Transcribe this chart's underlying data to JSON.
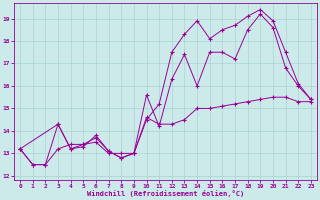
{
  "xlabel": "Windchill (Refroidissement éolien,°C)",
  "bg_color": "#cceaea",
  "line_color": "#990099",
  "grid_color": "#aad4d4",
  "xlim": [
    -0.5,
    23.5
  ],
  "ylim": [
    11.8,
    19.7
  ],
  "yticks": [
    12,
    13,
    14,
    15,
    16,
    17,
    18,
    19
  ],
  "xticks": [
    0,
    1,
    2,
    3,
    4,
    5,
    6,
    7,
    8,
    9,
    10,
    11,
    12,
    13,
    14,
    15,
    16,
    17,
    18,
    19,
    20,
    21,
    22,
    23
  ],
  "line1_x": [
    0,
    1,
    2,
    3,
    4,
    5,
    6,
    7,
    8,
    9,
    10,
    11,
    12,
    13,
    14,
    15,
    16,
    17,
    18,
    19,
    20,
    21,
    22,
    23
  ],
  "line1_y": [
    13.2,
    12.5,
    12.5,
    14.3,
    13.2,
    13.4,
    13.7,
    13.1,
    12.8,
    13.0,
    14.6,
    14.3,
    14.3,
    14.5,
    15.0,
    15.0,
    15.1,
    15.2,
    15.3,
    15.4,
    15.5,
    15.5,
    15.3,
    15.3
  ],
  "line2_x": [
    0,
    1,
    2,
    3,
    4,
    5,
    6,
    7,
    8,
    9,
    10,
    11,
    12,
    13,
    14,
    15,
    16,
    17,
    18,
    19,
    20,
    21,
    22,
    23
  ],
  "line2_y": [
    13.2,
    12.5,
    12.5,
    13.2,
    13.4,
    13.4,
    13.5,
    13.0,
    13.0,
    13.0,
    14.5,
    15.2,
    17.5,
    18.3,
    18.9,
    18.1,
    18.5,
    18.7,
    19.1,
    19.4,
    18.9,
    17.5,
    16.1,
    15.4
  ],
  "line3_x": [
    0,
    3,
    4,
    5,
    6,
    7,
    8,
    9,
    10,
    11,
    12,
    13,
    14,
    15,
    16,
    17,
    18,
    19,
    20,
    21,
    22,
    23
  ],
  "line3_y": [
    13.2,
    14.3,
    13.2,
    13.3,
    13.8,
    13.1,
    12.8,
    13.0,
    15.6,
    14.2,
    16.3,
    17.4,
    16.0,
    17.5,
    17.5,
    17.2,
    18.5,
    19.2,
    18.6,
    16.8,
    16.0,
    15.4
  ]
}
